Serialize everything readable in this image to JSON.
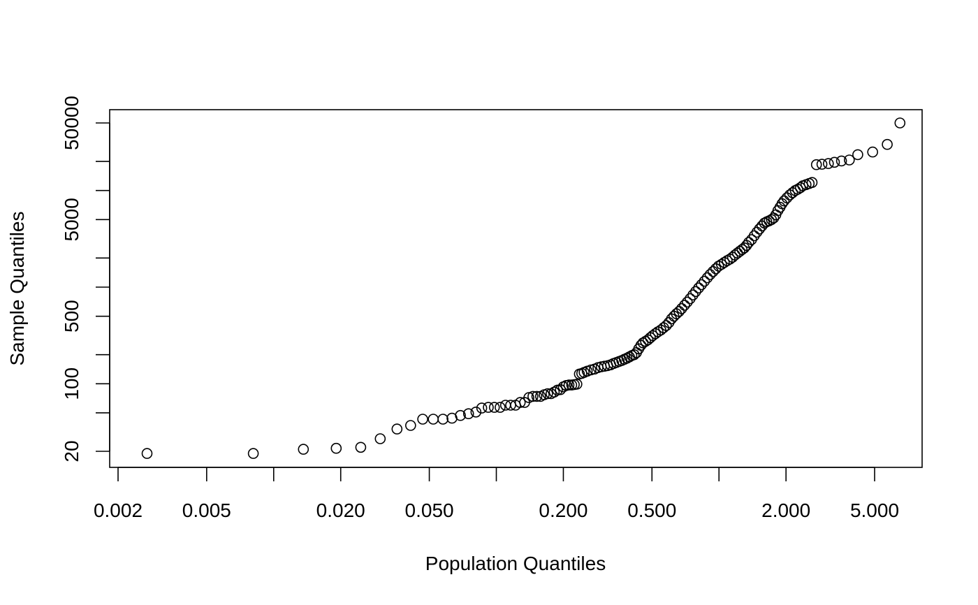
{
  "chart_data": {
    "type": "scatter",
    "title": "",
    "xlabel": "Population Quantiles",
    "ylabel": "Sample Quantiles",
    "x_scale": "log",
    "y_scale": "log",
    "xlim": [
      0.0018,
      6.8
    ],
    "ylim": [
      14,
      75000
    ],
    "grid": false,
    "legend": "none",
    "x_ticks": [
      0.002,
      0.005,
      0.01,
      0.02,
      0.05,
      0.1,
      0.2,
      0.5,
      1,
      2,
      5
    ],
    "x_tick_labels": [
      "0.002",
      "0.005",
      "",
      "0.020",
      "0.050",
      "",
      "0.200",
      "0.500",
      "",
      "2.000",
      "5.000"
    ],
    "y_ticks": [
      20,
      50,
      100,
      200,
      500,
      1000,
      2000,
      5000,
      10000,
      20000,
      50000
    ],
    "y_tick_labels": [
      "20",
      "",
      "100",
      "",
      "500",
      "",
      "",
      "5000",
      "",
      "",
      "50000"
    ],
    "point_color": "#000000",
    "points": [
      [
        0.0027,
        19
      ],
      [
        0.0081,
        19
      ],
      [
        0.0136,
        21
      ],
      [
        0.0191,
        21.5
      ],
      [
        0.0246,
        22
      ],
      [
        0.0301,
        27
      ],
      [
        0.0358,
        34
      ],
      [
        0.0412,
        37
      ],
      [
        0.0467,
        43
      ],
      [
        0.0521,
        43
      ],
      [
        0.0576,
        43
      ],
      [
        0.0632,
        44
      ],
      [
        0.069,
        47
      ],
      [
        0.075,
        49
      ],
      [
        0.081,
        51
      ],
      [
        0.086,
        56
      ],
      [
        0.092,
        57
      ],
      [
        0.098,
        57
      ],
      [
        0.104,
        57
      ],
      [
        0.11,
        60
      ],
      [
        0.116,
        60
      ],
      [
        0.122,
        60
      ],
      [
        0.128,
        64
      ],
      [
        0.134,
        64
      ],
      [
        0.14,
        72
      ],
      [
        0.146,
        74
      ],
      [
        0.152,
        74
      ],
      [
        0.158,
        74
      ],
      [
        0.164,
        77
      ],
      [
        0.17,
        79
      ],
      [
        0.176,
        79
      ],
      [
        0.182,
        82
      ],
      [
        0.188,
        86
      ],
      [
        0.194,
        87
      ],
      [
        0.2,
        93
      ],
      [
        0.206,
        96
      ],
      [
        0.212,
        97
      ],
      [
        0.218,
        97
      ],
      [
        0.224,
        98
      ],
      [
        0.23,
        99
      ],
      [
        0.236,
        126
      ],
      [
        0.242,
        128
      ],
      [
        0.248,
        131
      ],
      [
        0.256,
        135
      ],
      [
        0.266,
        139
      ],
      [
        0.276,
        142
      ],
      [
        0.286,
        147
      ],
      [
        0.296,
        150
      ],
      [
        0.306,
        152
      ],
      [
        0.316,
        154
      ],
      [
        0.326,
        157
      ],
      [
        0.336,
        162
      ],
      [
        0.346,
        166
      ],
      [
        0.356,
        170
      ],
      [
        0.366,
        174
      ],
      [
        0.376,
        179
      ],
      [
        0.386,
        184
      ],
      [
        0.396,
        190
      ],
      [
        0.406,
        196
      ],
      [
        0.416,
        200
      ],
      [
        0.426,
        210
      ],
      [
        0.436,
        230
      ],
      [
        0.446,
        250
      ],
      [
        0.456,
        265
      ],
      [
        0.468,
        275
      ],
      [
        0.48,
        285
      ],
      [
        0.492,
        300
      ],
      [
        0.504,
        315
      ],
      [
        0.518,
        330
      ],
      [
        0.532,
        345
      ],
      [
        0.548,
        360
      ],
      [
        0.564,
        380
      ],
      [
        0.58,
        400
      ],
      [
        0.596,
        430
      ],
      [
        0.612,
        470
      ],
      [
        0.628,
        500
      ],
      [
        0.644,
        530
      ],
      [
        0.662,
        560
      ],
      [
        0.68,
        600
      ],
      [
        0.7,
        650
      ],
      [
        0.72,
        700
      ],
      [
        0.742,
        760
      ],
      [
        0.764,
        830
      ],
      [
        0.786,
        900
      ],
      [
        0.81,
        980
      ],
      [
        0.834,
        1060
      ],
      [
        0.86,
        1150
      ],
      [
        0.886,
        1250
      ],
      [
        0.912,
        1350
      ],
      [
        0.94,
        1450
      ],
      [
        0.968,
        1550
      ],
      [
        0.996,
        1650
      ],
      [
        1.026,
        1720
      ],
      [
        1.056,
        1800
      ],
      [
        1.088,
        1880
      ],
      [
        1.12,
        1950
      ],
      [
        1.15,
        2040
      ],
      [
        1.18,
        2150
      ],
      [
        1.21,
        2250
      ],
      [
        1.24,
        2350
      ],
      [
        1.27,
        2450
      ],
      [
        1.3,
        2550
      ],
      [
        1.33,
        2700
      ],
      [
        1.36,
        2900
      ],
      [
        1.4,
        3100
      ],
      [
        1.44,
        3400
      ],
      [
        1.48,
        3700
      ],
      [
        1.52,
        4000
      ],
      [
        1.56,
        4300
      ],
      [
        1.6,
        4600
      ],
      [
        1.64,
        4750
      ],
      [
        1.68,
        4850
      ],
      [
        1.72,
        5000
      ],
      [
        1.76,
        5200
      ],
      [
        1.8,
        5600
      ],
      [
        1.84,
        6200
      ],
      [
        1.88,
        6700
      ],
      [
        1.92,
        7300
      ],
      [
        1.96,
        7800
      ],
      [
        2.02,
        8400
      ],
      [
        2.08,
        9000
      ],
      [
        2.14,
        9500
      ],
      [
        2.2,
        10000
      ],
      [
        2.26,
        10300
      ],
      [
        2.32,
        10700
      ],
      [
        2.38,
        11200
      ],
      [
        2.46,
        11500
      ],
      [
        2.54,
        11800
      ],
      [
        2.62,
        12100
      ],
      [
        2.74,
        18500
      ],
      [
        2.9,
        18700
      ],
      [
        3.1,
        19000
      ],
      [
        3.3,
        19600
      ],
      [
        3.55,
        20200
      ],
      [
        3.85,
        20700
      ],
      [
        4.2,
        23500
      ],
      [
        4.9,
        25000
      ],
      [
        5.7,
        30000
      ],
      [
        6.5,
        50000
      ]
    ]
  }
}
